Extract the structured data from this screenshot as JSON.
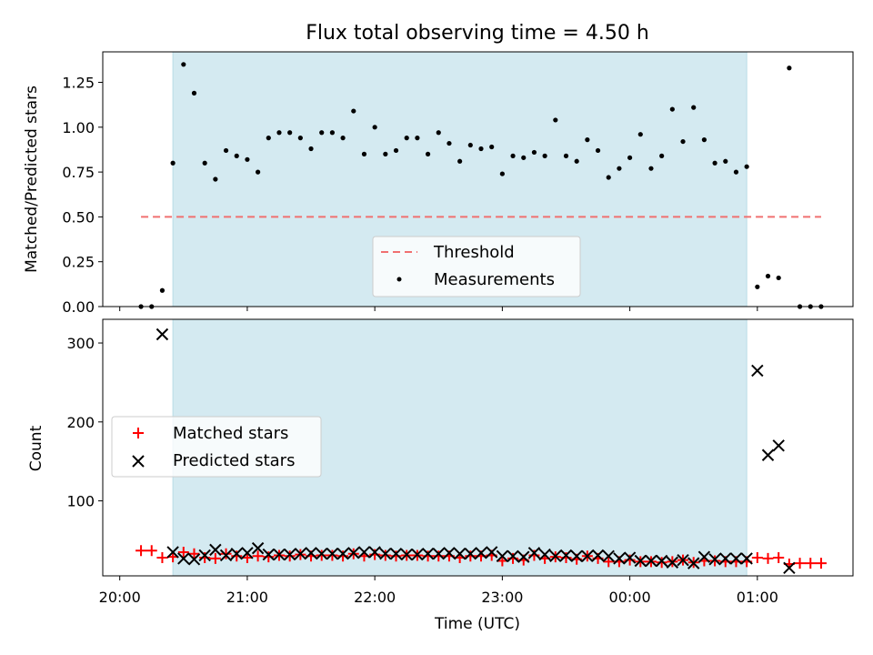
{
  "chart_data": [
    {
      "type": "scatter",
      "title": "Flux total observing time = 4.50 h",
      "xlabel": "",
      "ylabel": "Matched/Predicted stars",
      "ylim": [
        0,
        1.42
      ],
      "yticks": [
        "0.00",
        "0.25",
        "0.50",
        "0.75",
        "1.00",
        "1.25"
      ],
      "x_is_time_utc": true,
      "xlim": [
        "20:00",
        "01:45"
      ],
      "shaded_interval": [
        "20:25",
        "00:55"
      ],
      "shaded_color": "#d4eaf1",
      "threshold": {
        "name": "Threshold",
        "value": 0.5,
        "x_start": "20:10",
        "x_end": "01:30",
        "color": "#f07070",
        "style": "dashed"
      },
      "legend": {
        "position": "lower center",
        "entries": [
          "Threshold",
          "Measurements"
        ]
      },
      "series": [
        {
          "name": "Measurements",
          "marker": "dot",
          "color": "#000000",
          "x": [
            "20:10",
            "20:15",
            "20:20",
            "20:25",
            "20:30",
            "20:35",
            "20:40",
            "20:45",
            "20:50",
            "20:55",
            "21:00",
            "21:05",
            "21:10",
            "21:15",
            "21:20",
            "21:25",
            "21:30",
            "21:35",
            "21:40",
            "21:45",
            "21:50",
            "21:55",
            "22:00",
            "22:05",
            "22:10",
            "22:15",
            "22:20",
            "22:25",
            "22:30",
            "22:35",
            "22:40",
            "22:45",
            "22:50",
            "22:55",
            "23:00",
            "23:05",
            "23:10",
            "23:15",
            "23:20",
            "23:25",
            "23:30",
            "23:35",
            "23:40",
            "23:45",
            "23:50",
            "23:55",
            "00:00",
            "00:05",
            "00:10",
            "00:15",
            "00:20",
            "00:25",
            "00:30",
            "00:35",
            "00:40",
            "00:45",
            "00:50",
            "00:55",
            "01:00",
            "01:05",
            "01:10",
            "01:15",
            "01:20",
            "01:25",
            "01:30"
          ],
          "y": [
            0.0,
            0.0,
            0.09,
            0.8,
            1.35,
            1.19,
            0.8,
            0.71,
            0.87,
            0.84,
            0.82,
            0.75,
            0.94,
            0.97,
            0.97,
            0.94,
            0.88,
            0.97,
            0.97,
            0.94,
            1.09,
            0.85,
            1.0,
            0.85,
            0.87,
            0.94,
            0.94,
            0.85,
            0.97,
            0.91,
            0.81,
            0.9,
            0.88,
            0.89,
            0.74,
            0.84,
            0.83,
            0.86,
            0.84,
            1.04,
            0.84,
            0.81,
            0.93,
            0.87,
            0.72,
            0.77,
            0.83,
            0.96,
            0.77,
            0.84,
            1.1,
            0.92,
            1.11,
            0.93,
            0.8,
            0.81,
            0.75,
            0.78,
            0.11,
            0.17,
            0.16,
            1.33,
            0.0,
            0.0,
            0.0
          ]
        }
      ]
    },
    {
      "type": "scatter",
      "title": "",
      "xlabel": "Time (UTC)",
      "ylabel": "Count",
      "ylim": [
        5,
        330
      ],
      "yticks": [
        "100",
        "200",
        "300"
      ],
      "xlim": [
        "20:00",
        "01:45"
      ],
      "xticks": [
        "20:00",
        "21:00",
        "22:00",
        "23:00",
        "00:00",
        "01:00"
      ],
      "shaded_interval": [
        "20:25",
        "00:55"
      ],
      "shaded_color": "#d4eaf1",
      "legend": {
        "position": "center left",
        "entries": [
          "Matched stars",
          "Predicted stars"
        ]
      },
      "series": [
        {
          "name": "Matched stars",
          "marker": "plus",
          "color": "#ff0000",
          "x": [
            "20:10",
            "20:15",
            "20:20",
            "20:25",
            "20:30",
            "20:35",
            "20:40",
            "20:45",
            "20:50",
            "20:55",
            "21:00",
            "21:05",
            "21:10",
            "21:15",
            "21:20",
            "21:25",
            "21:30",
            "21:35",
            "21:40",
            "21:45",
            "21:50",
            "21:55",
            "22:00",
            "22:05",
            "22:10",
            "22:15",
            "22:20",
            "22:25",
            "22:30",
            "22:35",
            "22:40",
            "22:45",
            "22:50",
            "22:55",
            "23:00",
            "23:05",
            "23:10",
            "23:15",
            "23:20",
            "23:25",
            "23:30",
            "23:35",
            "23:40",
            "23:45",
            "23:50",
            "23:55",
            "00:00",
            "00:05",
            "00:10",
            "00:15",
            "00:20",
            "00:25",
            "00:30",
            "00:35",
            "00:40",
            "00:45",
            "00:50",
            "00:55",
            "01:00",
            "01:05",
            "01:10",
            "01:15",
            "01:20",
            "01:25",
            "01:30"
          ],
          "y": [
            37,
            37,
            28,
            29,
            35,
            33,
            28,
            27,
            33,
            30,
            28,
            30,
            29,
            31,
            30,
            32,
            30,
            31,
            31,
            30,
            33,
            30,
            32,
            31,
            30,
            31,
            31,
            30,
            30,
            30,
            28,
            30,
            30,
            31,
            24,
            27,
            25,
            31,
            27,
            29,
            28,
            26,
            30,
            27,
            23,
            23,
            25,
            23,
            23,
            22,
            23,
            25,
            22,
            24,
            24,
            23,
            23,
            23,
            28,
            27,
            28,
            20,
            21,
            21,
            21
          ]
        },
        {
          "name": "Predicted stars",
          "marker": "x",
          "color": "#000000",
          "x": [
            "20:20",
            "20:25",
            "20:30",
            "20:35",
            "20:40",
            "20:45",
            "20:50",
            "20:55",
            "21:00",
            "21:05",
            "21:10",
            "21:15",
            "21:20",
            "21:25",
            "21:30",
            "21:35",
            "21:40",
            "21:45",
            "21:50",
            "21:55",
            "22:00",
            "22:05",
            "22:10",
            "22:15",
            "22:20",
            "22:25",
            "22:30",
            "22:35",
            "22:40",
            "22:45",
            "22:50",
            "22:55",
            "23:00",
            "23:05",
            "23:10",
            "23:15",
            "23:20",
            "23:25",
            "23:30",
            "23:35",
            "23:40",
            "23:45",
            "23:50",
            "23:55",
            "00:00",
            "00:05",
            "00:10",
            "00:15",
            "00:20",
            "00:25",
            "00:30",
            "00:35",
            "00:40",
            "00:45",
            "00:50",
            "00:55",
            "01:00",
            "01:05",
            "01:10",
            "01:15"
          ],
          "y": [
            311,
            35,
            27,
            26,
            31,
            38,
            31,
            33,
            34,
            40,
            32,
            32,
            32,
            33,
            34,
            33,
            33,
            33,
            34,
            35,
            35,
            33,
            33,
            32,
            32,
            33,
            33,
            34,
            33,
            33,
            34,
            35,
            30,
            30,
            29,
            34,
            32,
            30,
            31,
            30,
            30,
            31,
            30,
            27,
            28,
            24,
            24,
            24,
            22,
            25,
            21,
            29,
            26,
            27,
            27,
            27,
            265,
            158,
            170,
            15
          ]
        }
      ]
    }
  ]
}
